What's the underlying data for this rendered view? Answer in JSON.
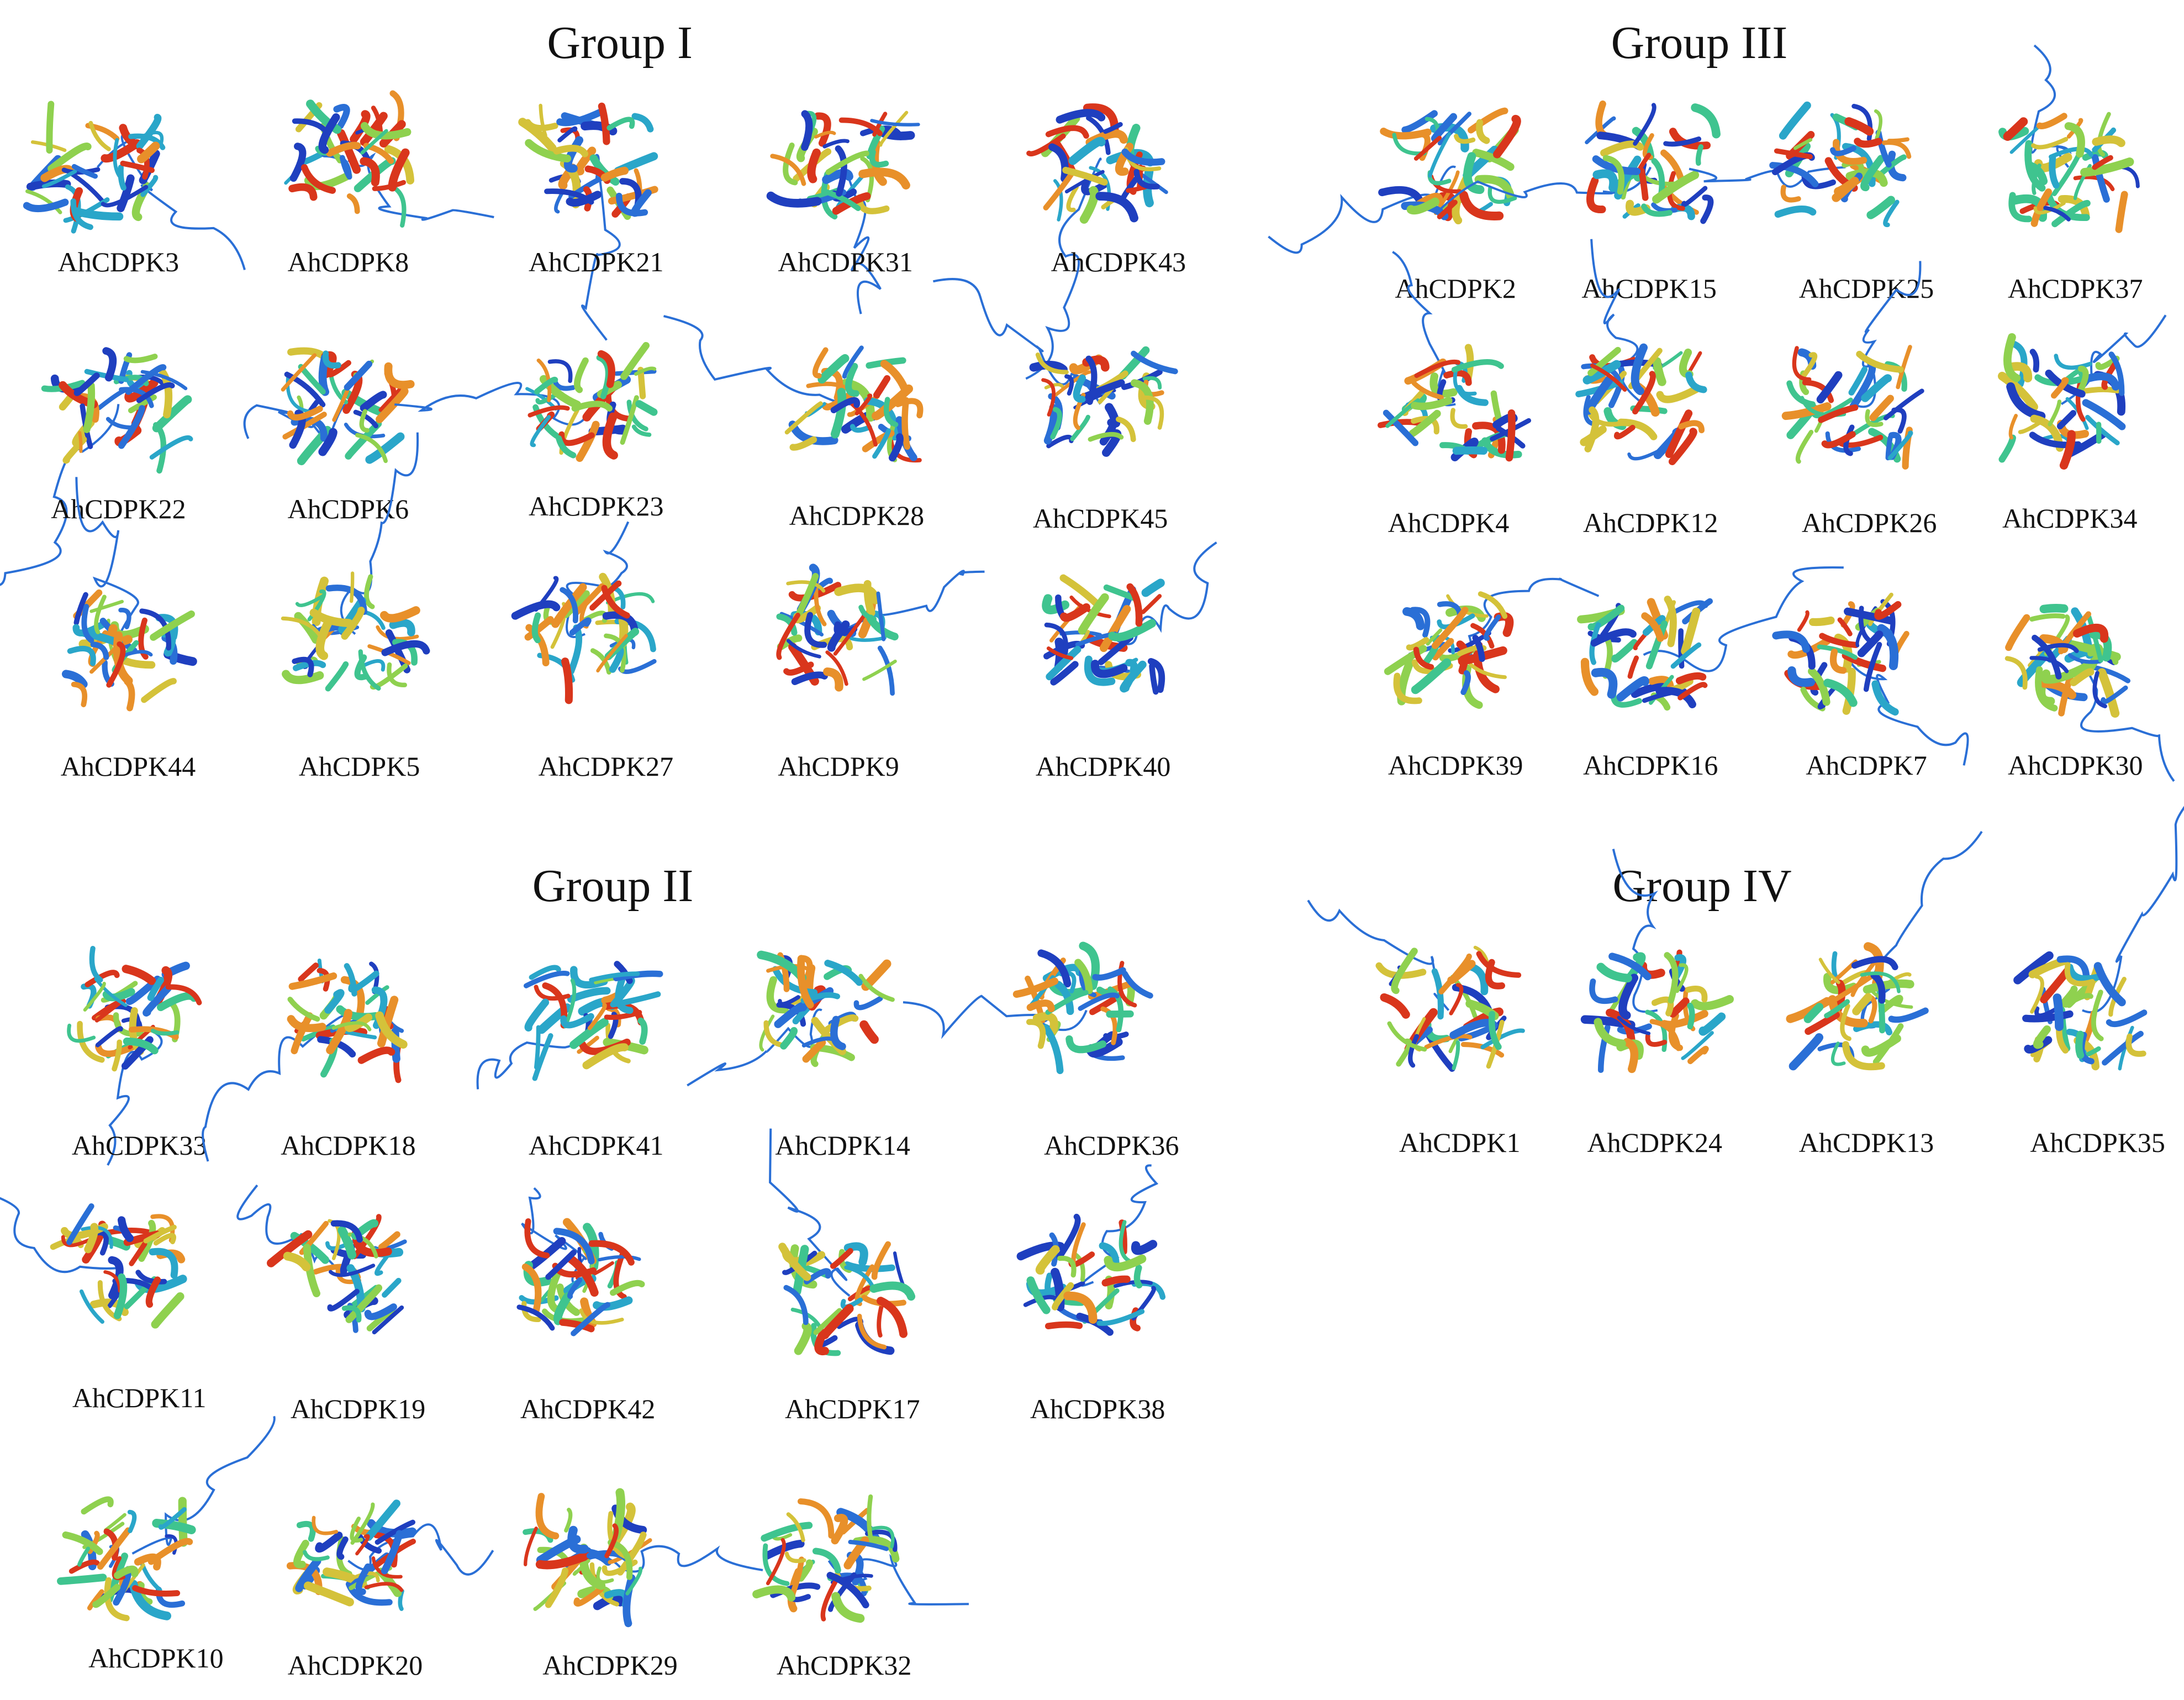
{
  "groups": [
    {
      "title": "Group I",
      "proteins": [
        "AhCDPK3",
        "AhCDPK8",
        "AhCDPK21",
        "AhCDPK31",
        "AhCDPK43",
        "AhCDPK22",
        "AhCDPK6",
        "AhCDPK23",
        "AhCDPK28",
        "AhCDPK45",
        "AhCDPK44",
        "AhCDPK5",
        "AhCDPK27",
        "AhCDPK9",
        "AhCDPK40"
      ]
    },
    {
      "title": "Group II",
      "proteins": [
        "AhCDPK33",
        "AhCDPK18",
        "AhCDPK41",
        "AhCDPK14",
        "AhCDPK36",
        "AhCDPK11",
        "AhCDPK19",
        "AhCDPK42",
        "AhCDPK17",
        "AhCDPK38",
        "AhCDPK10",
        "AhCDPK20",
        "AhCDPK29",
        "AhCDPK32"
      ]
    },
    {
      "title": "Group III",
      "proteins": [
        "AhCDPK2",
        "AhCDPK15",
        "AhCDPK25",
        "AhCDPK37",
        "AhCDPK4",
        "AhCDPK12",
        "AhCDPK26",
        "AhCDPK34",
        "AhCDPK39",
        "AhCDPK16",
        "AhCDPK7",
        "AhCDPK30"
      ]
    },
    {
      "title": "Group IV",
      "proteins": [
        "AhCDPK1",
        "AhCDPK24",
        "AhCDPK13",
        "AhCDPK35"
      ]
    }
  ],
  "palette": [
    "#1f3fbf",
    "#2a6fd6",
    "#2aa6c9",
    "#3fc48f",
    "#8fd14f",
    "#d4c23a",
    "#e8902a",
    "#d9361c"
  ]
}
